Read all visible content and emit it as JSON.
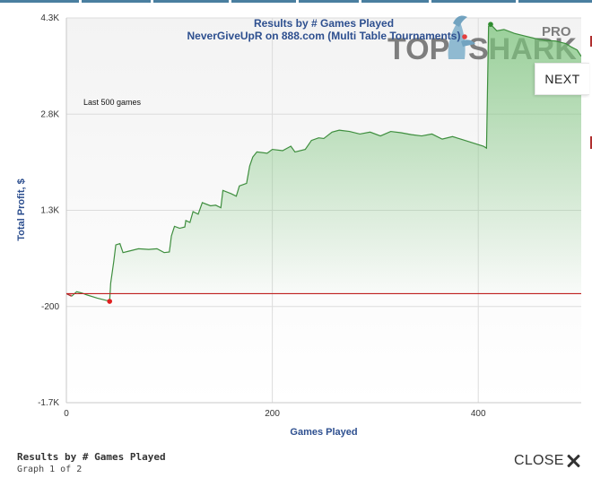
{
  "chart_data": {
    "type": "line",
    "title": "Results by # Games Played",
    "subtitle": "NeverGiveUpR on 888.com (Multi Table Tournaments)",
    "xlabel": "Games Played",
    "ylabel": "Total Profit, $",
    "annotation": "Last 500 games",
    "xlim": [
      0,
      500
    ],
    "ylim": [
      -1700,
      4300
    ],
    "x_ticks": [
      0,
      200,
      400
    ],
    "x_tick_labels": [
      "0",
      "200",
      "400"
    ],
    "y_ticks": [
      -1700,
      -200,
      1300,
      2800,
      4300
    ],
    "y_tick_labels": [
      "-1.7K",
      "-200",
      "1.3K",
      "2.8K",
      "4.3K"
    ],
    "grid": true,
    "baseline": 0,
    "series": [
      {
        "values": [
          [
            0,
            0
          ],
          [
            5,
            -40
          ],
          [
            10,
            30
          ],
          [
            15,
            10
          ],
          [
            20,
            -20
          ],
          [
            30,
            -70
          ],
          [
            40,
            -110
          ],
          [
            42,
            -120
          ],
          [
            43,
            160
          ],
          [
            46,
            500
          ],
          [
            48,
            760
          ],
          [
            52,
            780
          ],
          [
            55,
            640
          ],
          [
            60,
            660
          ],
          [
            70,
            700
          ],
          [
            80,
            690
          ],
          [
            88,
            700
          ],
          [
            95,
            640
          ],
          [
            100,
            650
          ],
          [
            102,
            900
          ],
          [
            105,
            1050
          ],
          [
            110,
            1020
          ],
          [
            115,
            1040
          ],
          [
            116,
            1140
          ],
          [
            120,
            1110
          ],
          [
            123,
            1280
          ],
          [
            128,
            1240
          ],
          [
            132,
            1420
          ],
          [
            140,
            1370
          ],
          [
            145,
            1380
          ],
          [
            150,
            1340
          ],
          [
            152,
            1610
          ],
          [
            160,
            1560
          ],
          [
            165,
            1520
          ],
          [
            168,
            1680
          ],
          [
            175,
            1720
          ],
          [
            178,
            1990
          ],
          [
            181,
            2130
          ],
          [
            185,
            2210
          ],
          [
            195,
            2190
          ],
          [
            200,
            2250
          ],
          [
            210,
            2230
          ],
          [
            218,
            2300
          ],
          [
            222,
            2210
          ],
          [
            232,
            2250
          ],
          [
            238,
            2390
          ],
          [
            245,
            2430
          ],
          [
            250,
            2420
          ],
          [
            258,
            2520
          ],
          [
            265,
            2550
          ],
          [
            275,
            2530
          ],
          [
            285,
            2490
          ],
          [
            295,
            2520
          ],
          [
            305,
            2460
          ],
          [
            315,
            2530
          ],
          [
            325,
            2510
          ],
          [
            335,
            2480
          ],
          [
            345,
            2460
          ],
          [
            355,
            2490
          ],
          [
            365,
            2410
          ],
          [
            375,
            2450
          ],
          [
            385,
            2400
          ],
          [
            395,
            2350
          ],
          [
            405,
            2300
          ],
          [
            408,
            2270
          ],
          [
            410,
            4170
          ],
          [
            412,
            4200
          ],
          [
            418,
            4100
          ],
          [
            425,
            4120
          ],
          [
            435,
            4060
          ],
          [
            445,
            4020
          ],
          [
            455,
            3980
          ],
          [
            465,
            3950
          ],
          [
            475,
            3940
          ],
          [
            480,
            3920
          ],
          [
            485,
            3900
          ],
          [
            490,
            3850
          ],
          [
            496,
            3800
          ],
          [
            500,
            3700
          ]
        ]
      }
    ],
    "markers": [
      {
        "x": 42,
        "y": -120,
        "color": "#e02020"
      },
      {
        "x": 412,
        "y": 4200,
        "color": "#2e8b2e"
      }
    ],
    "colors": {
      "line_positive": "#3e8e3e",
      "line_negative": "#a03030",
      "fill_positive": "#7cc47c",
      "fill_negative": "#f08080",
      "baseline": "#c02020"
    }
  },
  "watermark": {
    "brand_left": "TOP",
    "brand_right": "SHARK",
    "edition": "PRO"
  },
  "controls": {
    "next_label": "NEXT",
    "close_label": "CLOSE"
  },
  "footer": {
    "title": "Results by # Games Played",
    "subtitle": "Graph 1 of 2"
  }
}
